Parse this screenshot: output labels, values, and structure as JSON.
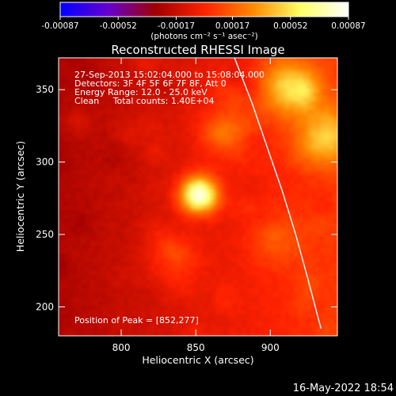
{
  "chart_data": {
    "type": "heatmap",
    "title": "Reconstructed RHESSI Image",
    "xlabel": "Heliocentric X (arcsec)",
    "ylabel": "Heliocentric Y (arcsec)",
    "xlim": [
      758,
      945
    ],
    "ylim": [
      180,
      372
    ],
    "x_ticks": [
      800,
      850,
      900
    ],
    "y_ticks": [
      200,
      250,
      300,
      350
    ],
    "colorbar": {
      "range": [
        -0.00087,
        0.00087
      ],
      "tick_values": [
        -0.00087,
        -0.00052,
        -0.00017,
        0.00017,
        0.00052,
        0.00087
      ],
      "tick_labels": [
        "-0.00087",
        "-0.00052",
        "-0.00017",
        "0.00017",
        "0.00052",
        "0.00087"
      ],
      "units_label": "(photons cm⁻² s⁻¹ asec⁻²)",
      "colors": [
        "#0000ff",
        "#6600cc",
        "#a00000",
        "#ff2200",
        "#ff8800",
        "#ffff66",
        "#ffffff"
      ]
    },
    "annotations": {
      "time_range": "27-Sep-2013 15:02:04.000 to 15:08:04.000",
      "detectors": "Detectors: 3F 4F 5F 6F 7F 8F, Att 0",
      "energy_range": "Energy Range: 12.0 - 25.0 keV",
      "clean_counts": "Clean     Total counts: 1.40E+04",
      "peak": "Position of Peak = [852,277]"
    },
    "peak": {
      "x": 852,
      "y": 277
    },
    "sources": [
      {
        "x": 852,
        "y": 277,
        "amplitude": 0.00087
      },
      {
        "x": 912,
        "y": 352,
        "amplitude": 0.00048
      },
      {
        "x": 937,
        "y": 318,
        "amplitude": 0.00042
      },
      {
        "x": 872,
        "y": 322,
        "amplitude": 0.00022
      },
      {
        "x": 835,
        "y": 232,
        "amplitude": 0.00016
      },
      {
        "x": 905,
        "y": 245,
        "amplitude": 0.00014
      }
    ],
    "limb_curve": [
      [
        876,
        372
      ],
      [
        888,
        340
      ],
      [
        898,
        310
      ],
      [
        908,
        280
      ],
      [
        917,
        250
      ],
      [
        925,
        220
      ],
      [
        934,
        185
      ]
    ]
  },
  "footer": {
    "date": "16-May-2022 18:54"
  }
}
